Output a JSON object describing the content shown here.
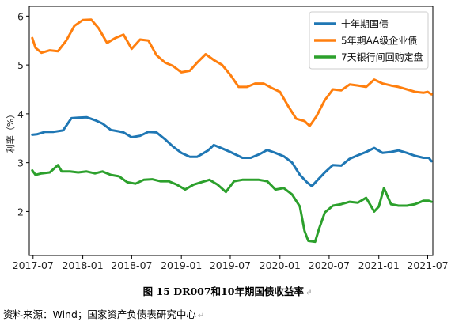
{
  "figure": {
    "caption": "图 15 DR007和10年期国债收益率",
    "source": "资料来源：Wind；国家资产负债表研究中心",
    "para_mark": "↵"
  },
  "chart_data": {
    "type": "line",
    "title": "",
    "xlabel": "",
    "ylabel": "利率（%）",
    "ylim": [
      1.1,
      6.2
    ],
    "yticks": [
      2,
      3,
      4,
      5,
      6
    ],
    "xlim": [
      "2017-06-17",
      "2021-07-20"
    ],
    "xticks": [
      "2017-07",
      "2018-01",
      "2018-07",
      "2019-01",
      "2019-07",
      "2020-01",
      "2020-07",
      "2021-01",
      "2021-07"
    ],
    "grid": false,
    "legend": "top-right",
    "series": [
      {
        "name": "十年期国债",
        "color": "#1f77b4",
        "points": [
          [
            "2017-06-28",
            3.57
          ],
          [
            "2017-07-15",
            3.58
          ],
          [
            "2017-08-15",
            3.63
          ],
          [
            "2017-09-15",
            3.63
          ],
          [
            "2017-10-20",
            3.66
          ],
          [
            "2017-11-20",
            3.91
          ],
          [
            "2017-12-15",
            3.92
          ],
          [
            "2018-01-15",
            3.93
          ],
          [
            "2018-02-15",
            3.87
          ],
          [
            "2018-03-15",
            3.8
          ],
          [
            "2018-04-15",
            3.67
          ],
          [
            "2018-05-15",
            3.64
          ],
          [
            "2018-06-01",
            3.62
          ],
          [
            "2018-07-01",
            3.52
          ],
          [
            "2018-08-01",
            3.55
          ],
          [
            "2018-09-01",
            3.63
          ],
          [
            "2018-10-01",
            3.62
          ],
          [
            "2018-11-01",
            3.48
          ],
          [
            "2018-12-01",
            3.33
          ],
          [
            "2019-01-01",
            3.2
          ],
          [
            "2019-02-01",
            3.12
          ],
          [
            "2019-03-01",
            3.12
          ],
          [
            "2019-04-10",
            3.25
          ],
          [
            "2019-05-01",
            3.36
          ],
          [
            "2019-06-01",
            3.29
          ],
          [
            "2019-07-01",
            3.22
          ],
          [
            "2019-08-15",
            3.1
          ],
          [
            "2019-09-15",
            3.1
          ],
          [
            "2019-10-20",
            3.18
          ],
          [
            "2019-11-15",
            3.26
          ],
          [
            "2019-12-15",
            3.2
          ],
          [
            "2020-01-15",
            3.13
          ],
          [
            "2020-02-15",
            3.0
          ],
          [
            "2020-03-15",
            2.75
          ],
          [
            "2020-04-10",
            2.6
          ],
          [
            "2020-04-28",
            2.52
          ],
          [
            "2020-05-20",
            2.65
          ],
          [
            "2020-06-15",
            2.8
          ],
          [
            "2020-07-15",
            2.95
          ],
          [
            "2020-08-15",
            2.94
          ],
          [
            "2020-09-15",
            3.08
          ],
          [
            "2020-10-15",
            3.15
          ],
          [
            "2020-11-15",
            3.22
          ],
          [
            "2020-12-15",
            3.3
          ],
          [
            "2021-01-15",
            3.2
          ],
          [
            "2021-02-15",
            3.22
          ],
          [
            "2021-03-15",
            3.25
          ],
          [
            "2021-04-15",
            3.2
          ],
          [
            "2021-05-15",
            3.14
          ],
          [
            "2021-06-15",
            3.1
          ],
          [
            "2021-07-05",
            3.1
          ],
          [
            "2021-07-15",
            3.03
          ]
        ]
      },
      {
        "name": "5年期AA级企业债",
        "color": "#ff7f0e",
        "points": [
          [
            "2017-06-28",
            5.55
          ],
          [
            "2017-07-10",
            5.35
          ],
          [
            "2017-08-01",
            5.25
          ],
          [
            "2017-09-01",
            5.3
          ],
          [
            "2017-10-01",
            5.28
          ],
          [
            "2017-11-01",
            5.5
          ],
          [
            "2017-12-01",
            5.8
          ],
          [
            "2018-01-01",
            5.92
          ],
          [
            "2018-02-01",
            5.93
          ],
          [
            "2018-03-01",
            5.75
          ],
          [
            "2018-04-01",
            5.45
          ],
          [
            "2018-05-01",
            5.55
          ],
          [
            "2018-06-01",
            5.62
          ],
          [
            "2018-07-01",
            5.33
          ],
          [
            "2018-08-01",
            5.52
          ],
          [
            "2018-09-01",
            5.5
          ],
          [
            "2018-10-01",
            5.2
          ],
          [
            "2018-11-01",
            5.05
          ],
          [
            "2018-12-01",
            4.98
          ],
          [
            "2019-01-01",
            4.85
          ],
          [
            "2019-02-01",
            4.88
          ],
          [
            "2019-03-01",
            5.05
          ],
          [
            "2019-04-01",
            5.22
          ],
          [
            "2019-05-01",
            5.1
          ],
          [
            "2019-06-01",
            5.0
          ],
          [
            "2019-07-01",
            4.8
          ],
          [
            "2019-08-01",
            4.55
          ],
          [
            "2019-09-01",
            4.55
          ],
          [
            "2019-10-01",
            4.62
          ],
          [
            "2019-11-01",
            4.62
          ],
          [
            "2019-12-01",
            4.53
          ],
          [
            "2020-01-01",
            4.45
          ],
          [
            "2020-02-01",
            4.15
          ],
          [
            "2020-03-01",
            3.9
          ],
          [
            "2020-04-01",
            3.85
          ],
          [
            "2020-04-20",
            3.75
          ],
          [
            "2020-05-15",
            3.95
          ],
          [
            "2020-06-15",
            4.28
          ],
          [
            "2020-07-15",
            4.5
          ],
          [
            "2020-08-15",
            4.48
          ],
          [
            "2020-09-15",
            4.6
          ],
          [
            "2020-10-15",
            4.58
          ],
          [
            "2020-11-15",
            4.55
          ],
          [
            "2020-12-15",
            4.7
          ],
          [
            "2021-01-15",
            4.62
          ],
          [
            "2021-02-15",
            4.58
          ],
          [
            "2021-03-15",
            4.55
          ],
          [
            "2021-04-15",
            4.5
          ],
          [
            "2021-05-15",
            4.45
          ],
          [
            "2021-06-15",
            4.43
          ],
          [
            "2021-07-01",
            4.45
          ],
          [
            "2021-07-15",
            4.4
          ]
        ]
      },
      {
        "name": "7天银行间回购定盘",
        "color": "#2ca02c",
        "points": [
          [
            "2017-06-28",
            2.84
          ],
          [
            "2017-07-10",
            2.75
          ],
          [
            "2017-08-01",
            2.78
          ],
          [
            "2017-09-01",
            2.8
          ],
          [
            "2017-10-01",
            2.95
          ],
          [
            "2017-10-15",
            2.82
          ],
          [
            "2017-11-15",
            2.82
          ],
          [
            "2017-12-15",
            2.8
          ],
          [
            "2018-01-15",
            2.82
          ],
          [
            "2018-02-15",
            2.78
          ],
          [
            "2018-03-15",
            2.82
          ],
          [
            "2018-04-15",
            2.75
          ],
          [
            "2018-05-15",
            2.72
          ],
          [
            "2018-06-15",
            2.6
          ],
          [
            "2018-07-15",
            2.57
          ],
          [
            "2018-08-15",
            2.65
          ],
          [
            "2018-09-15",
            2.66
          ],
          [
            "2018-10-15",
            2.62
          ],
          [
            "2018-11-15",
            2.62
          ],
          [
            "2018-12-15",
            2.55
          ],
          [
            "2019-01-15",
            2.45
          ],
          [
            "2019-02-15",
            2.55
          ],
          [
            "2019-03-15",
            2.6
          ],
          [
            "2019-04-15",
            2.65
          ],
          [
            "2019-05-15",
            2.55
          ],
          [
            "2019-06-15",
            2.4
          ],
          [
            "2019-07-15",
            2.62
          ],
          [
            "2019-08-15",
            2.65
          ],
          [
            "2019-09-15",
            2.65
          ],
          [
            "2019-10-15",
            2.65
          ],
          [
            "2019-11-15",
            2.62
          ],
          [
            "2019-12-15",
            2.45
          ],
          [
            "2020-01-15",
            2.48
          ],
          [
            "2020-02-15",
            2.35
          ],
          [
            "2020-03-15",
            2.1
          ],
          [
            "2020-04-01",
            1.6
          ],
          [
            "2020-04-15",
            1.4
          ],
          [
            "2020-05-10",
            1.38
          ],
          [
            "2020-05-25",
            1.65
          ],
          [
            "2020-06-15",
            1.98
          ],
          [
            "2020-07-15",
            2.12
          ],
          [
            "2020-08-15",
            2.15
          ],
          [
            "2020-09-15",
            2.2
          ],
          [
            "2020-10-15",
            2.18
          ],
          [
            "2020-11-15",
            2.28
          ],
          [
            "2020-12-15",
            2.0
          ],
          [
            "2021-01-01",
            2.1
          ],
          [
            "2021-01-20",
            2.48
          ],
          [
            "2021-02-15",
            2.15
          ],
          [
            "2021-03-15",
            2.12
          ],
          [
            "2021-04-15",
            2.12
          ],
          [
            "2021-05-15",
            2.15
          ],
          [
            "2021-06-15",
            2.22
          ],
          [
            "2021-07-05",
            2.22
          ],
          [
            "2021-07-15",
            2.2
          ]
        ]
      }
    ]
  }
}
